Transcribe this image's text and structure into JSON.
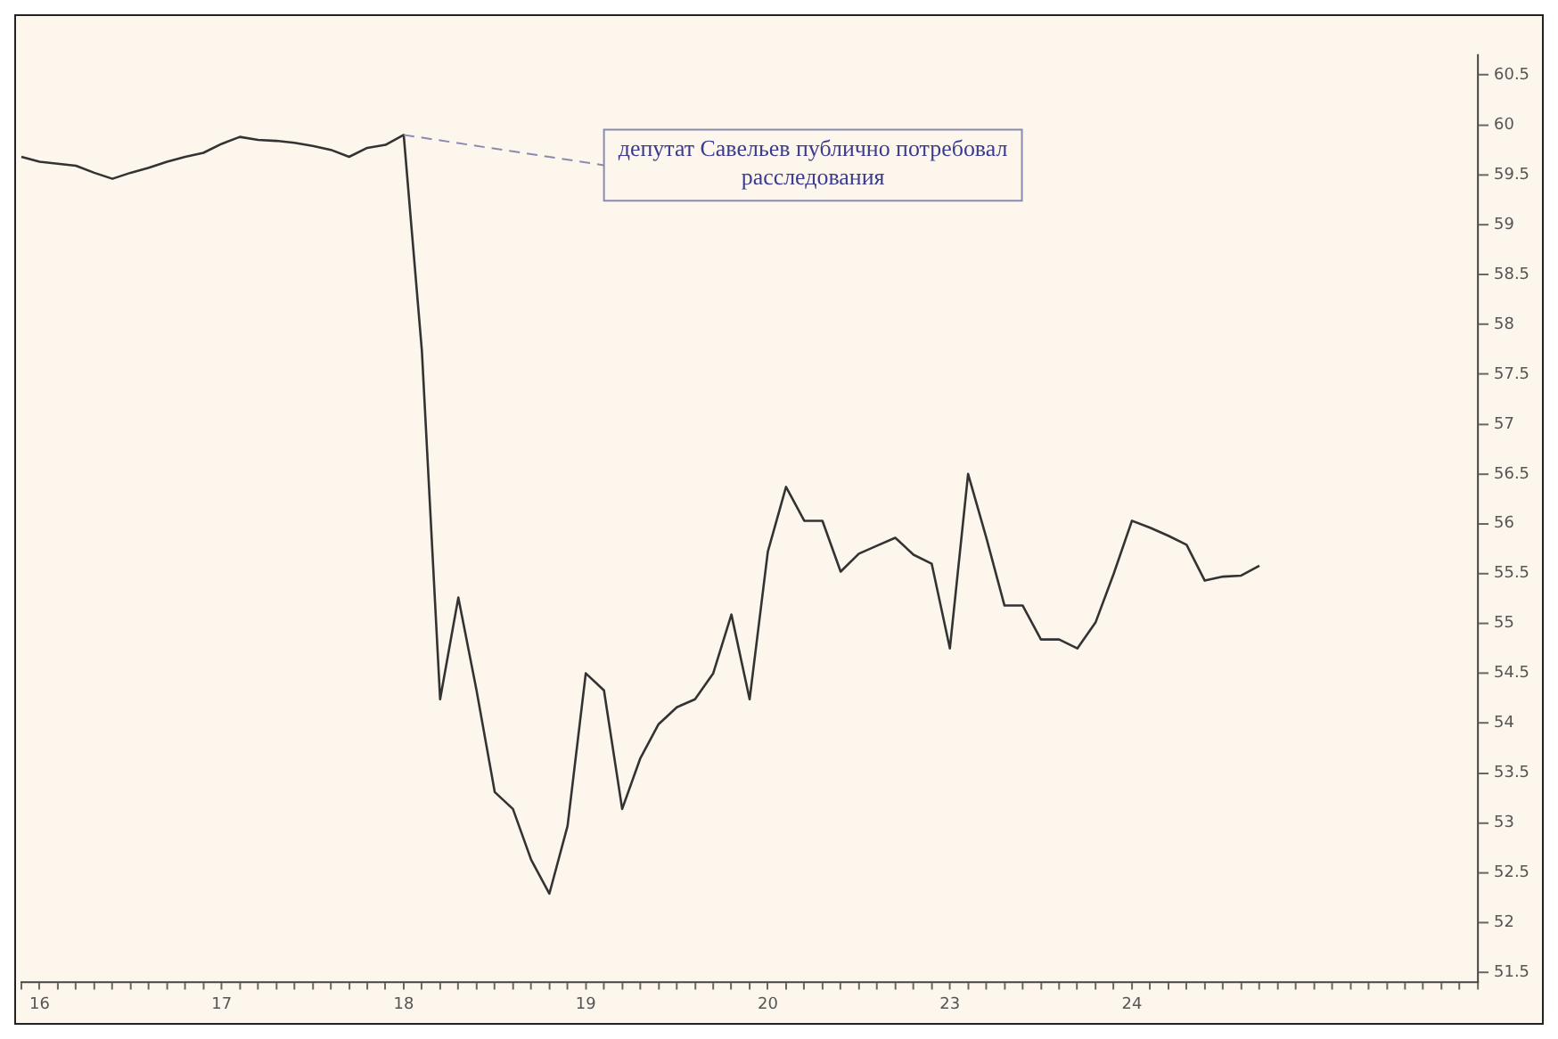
{
  "chart_data": {
    "type": "line",
    "categories": [
      null,
      "16",
      null,
      null,
      null,
      null,
      null,
      null,
      null,
      null,
      null,
      "17",
      null,
      null,
      null,
      null,
      null,
      null,
      null,
      null,
      null,
      "18",
      null,
      null,
      null,
      null,
      null,
      null,
      null,
      null,
      null,
      "19",
      null,
      null,
      null,
      null,
      null,
      null,
      null,
      null,
      null,
      "20",
      null,
      null,
      null,
      null,
      null,
      null,
      null,
      null,
      null,
      "23",
      null,
      null,
      null,
      null,
      null,
      null,
      null,
      null,
      null,
      "24",
      null,
      null,
      null,
      null,
      null,
      null,
      null,
      null,
      null,
      null,
      null,
      null,
      null,
      null,
      null,
      null,
      null,
      null,
      null
    ],
    "series": [
      {
        "color": "#333333",
        "values": [
          59.68,
          59.63,
          59.61,
          59.59,
          59.52,
          59.46,
          59.52,
          59.57,
          59.63,
          59.68,
          59.72,
          59.81,
          59.88,
          59.85,
          59.84,
          59.82,
          59.79,
          59.75,
          59.68,
          59.77,
          59.8,
          59.9,
          57.73,
          54.24,
          55.26,
          54.33,
          53.31,
          53.14,
          52.63,
          52.29,
          52.97,
          54.5,
          54.33,
          53.14,
          53.65,
          53.99,
          54.16,
          54.24,
          54.5,
          55.09,
          54.24,
          55.72,
          56.37,
          56.03,
          56.03,
          55.52,
          55.7,
          55.78,
          55.86,
          55.69,
          55.6,
          54.75,
          56.5,
          55.86,
          55.18,
          55.18,
          54.84,
          54.84,
          54.75,
          55.01,
          55.5,
          56.03,
          55.96,
          55.88,
          55.79,
          55.43,
          55.47,
          55.48,
          55.58,
          null,
          null,
          null,
          null,
          null,
          null,
          null,
          null,
          null,
          null,
          null,
          null
        ]
      }
    ],
    "ylim": [
      51.4,
      60.7
    ],
    "yticks": [
      51.5,
      52,
      52.5,
      53,
      53.5,
      54,
      54.5,
      55,
      55.5,
      56,
      56.5,
      57,
      57.5,
      58,
      58.5,
      59,
      59.5,
      60,
      60.5
    ],
    "annotations": [
      {
        "text": "депутат Савельев публично потребовал расследования",
        "x": "18",
        "y": 59.9
      }
    ],
    "grid": false,
    "legend": false,
    "marker": "none",
    "line_style": "solid"
  }
}
